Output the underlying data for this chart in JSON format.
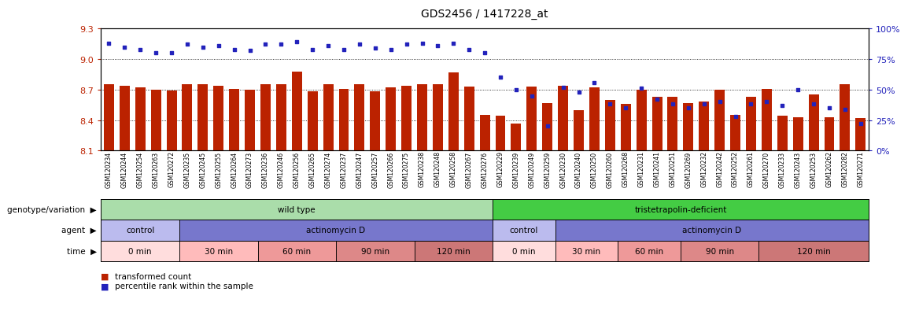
{
  "title": "GDS2456 / 1417228_at",
  "bar_color": "#bb2200",
  "dot_color": "#2222bb",
  "ylim_left": [
    8.1,
    9.3
  ],
  "ylim_right": [
    0,
    100
  ],
  "yticks_left": [
    8.1,
    8.4,
    8.7,
    9.0,
    9.3
  ],
  "yticks_right": [
    0,
    25,
    50,
    75,
    100
  ],
  "samples": [
    "GSM120234",
    "GSM120244",
    "GSM120254",
    "GSM120263",
    "GSM120272",
    "GSM120235",
    "GSM120245",
    "GSM120255",
    "GSM120264",
    "GSM120273",
    "GSM120236",
    "GSM120246",
    "GSM120256",
    "GSM120265",
    "GSM120274",
    "GSM120237",
    "GSM120247",
    "GSM120257",
    "GSM120266",
    "GSM120275",
    "GSM120238",
    "GSM120248",
    "GSM120258",
    "GSM120267",
    "GSM120276",
    "GSM120229",
    "GSM120239",
    "GSM120249",
    "GSM120259",
    "GSM120230",
    "GSM120240",
    "GSM120250",
    "GSM120260",
    "GSM120268",
    "GSM120231",
    "GSM120241",
    "GSM120251",
    "GSM120269",
    "GSM120232",
    "GSM120242",
    "GSM120252",
    "GSM120261",
    "GSM120270",
    "GSM120233",
    "GSM120243",
    "GSM120253",
    "GSM120262",
    "GSM120282",
    "GSM120271"
  ],
  "bar_values": [
    8.75,
    8.74,
    8.72,
    8.7,
    8.69,
    8.75,
    8.75,
    8.74,
    8.71,
    8.7,
    8.75,
    8.75,
    8.88,
    8.68,
    8.75,
    8.71,
    8.75,
    8.68,
    8.72,
    8.74,
    8.75,
    8.75,
    8.87,
    8.73,
    8.45,
    8.44,
    8.37,
    8.73,
    8.57,
    8.74,
    8.5,
    8.72,
    8.6,
    8.56,
    8.7,
    8.63,
    8.63,
    8.57,
    8.58,
    8.7,
    8.45,
    8.63,
    8.71,
    8.44,
    8.43,
    8.65,
    8.43,
    8.75,
    8.42
  ],
  "dot_values": [
    88,
    85,
    83,
    80,
    80,
    87,
    85,
    86,
    83,
    82,
    87,
    87,
    89,
    83,
    86,
    83,
    87,
    84,
    83,
    87,
    88,
    86,
    88,
    83,
    80,
    60,
    50,
    45,
    20,
    52,
    48,
    56,
    38,
    35,
    51,
    42,
    38,
    35,
    38,
    40,
    28,
    38,
    40,
    37,
    50,
    38,
    35,
    34,
    22
  ],
  "genotype_groups": [
    {
      "label": "wild type",
      "start": 0,
      "end": 24,
      "color": "#aaddaa"
    },
    {
      "label": "tristetrapolin-deficient",
      "start": 25,
      "end": 48,
      "color": "#44cc44"
    }
  ],
  "agent_groups": [
    {
      "label": "control",
      "start": 0,
      "end": 4,
      "color": "#bbbbee"
    },
    {
      "label": "actinomycin D",
      "start": 5,
      "end": 24,
      "color": "#7777cc"
    },
    {
      "label": "control",
      "start": 25,
      "end": 28,
      "color": "#bbbbee"
    },
    {
      "label": "actinomycin D",
      "start": 29,
      "end": 48,
      "color": "#7777cc"
    }
  ],
  "time_groups": [
    {
      "label": "0 min",
      "start": 0,
      "end": 4,
      "color": "#ffdddd"
    },
    {
      "label": "30 min",
      "start": 5,
      "end": 9,
      "color": "#ffbbbb"
    },
    {
      "label": "60 min",
      "start": 10,
      "end": 14,
      "color": "#ee9999"
    },
    {
      "label": "90 min",
      "start": 15,
      "end": 19,
      "color": "#dd8888"
    },
    {
      "label": "120 min",
      "start": 20,
      "end": 24,
      "color": "#cc7777"
    },
    {
      "label": "0 min",
      "start": 25,
      "end": 28,
      "color": "#ffdddd"
    },
    {
      "label": "30 min",
      "start": 29,
      "end": 32,
      "color": "#ffbbbb"
    },
    {
      "label": "60 min",
      "start": 33,
      "end": 36,
      "color": "#ee9999"
    },
    {
      "label": "90 min",
      "start": 37,
      "end": 41,
      "color": "#dd8888"
    },
    {
      "label": "120 min",
      "start": 42,
      "end": 48,
      "color": "#cc7777"
    }
  ],
  "row_labels": [
    "genotype/variation",
    "agent",
    "time"
  ],
  "legend_items": [
    {
      "label": "transformed count",
      "color": "#bb2200"
    },
    {
      "label": "percentile rank within the sample",
      "color": "#2222bb"
    }
  ]
}
